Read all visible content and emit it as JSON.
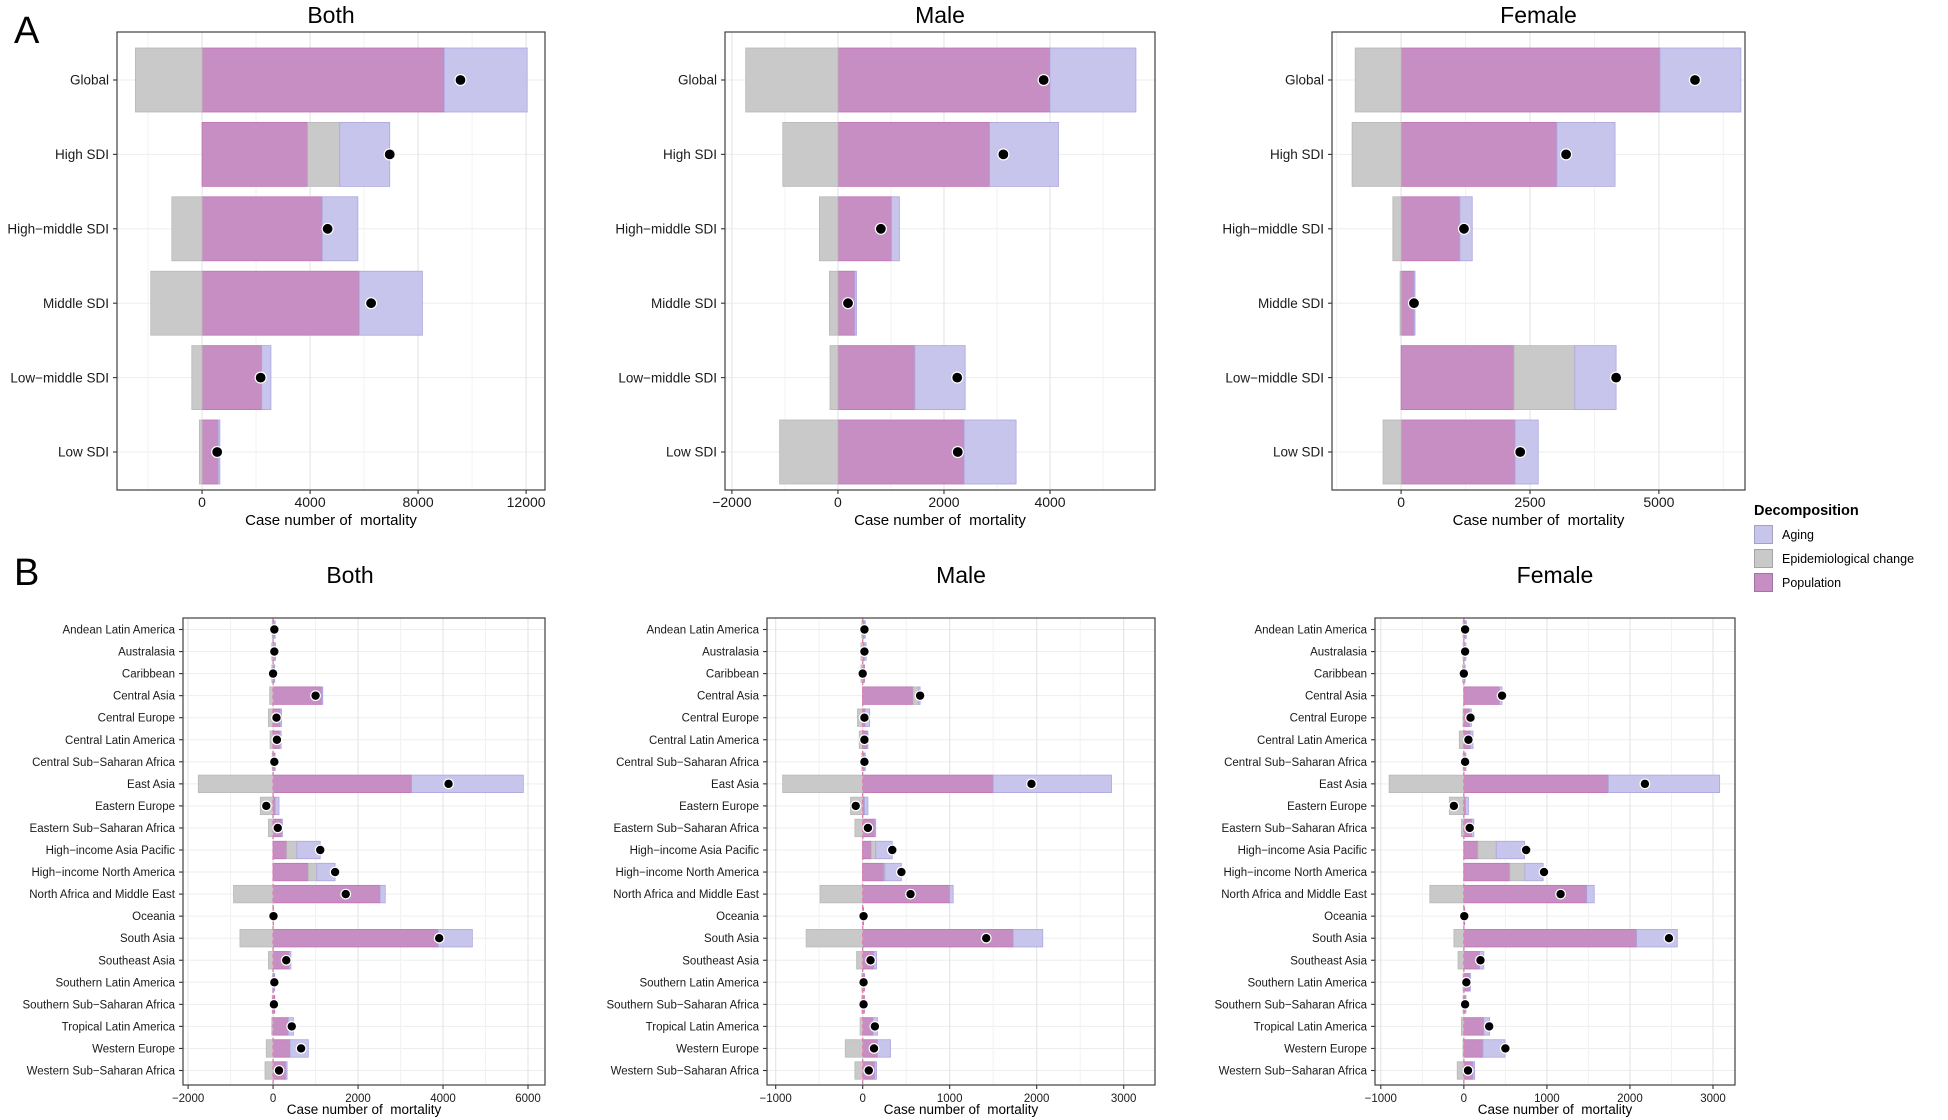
{
  "figure": {
    "panel_a_label": "A",
    "panel_b_label": "B",
    "legend": {
      "title": "Decomposition",
      "items": [
        {
          "label": "Aging",
          "color": "#c8c5ec"
        },
        {
          "label": "Epidemiological change",
          "color": "#c9c9c9"
        },
        {
          "label": "Population",
          "color": "#c78ec3"
        }
      ]
    },
    "colors": {
      "dot": "#000000",
      "zero_dashed_line": "#e082b4",
      "grid_major": "#e4e4e4",
      "grid_minor": "#f2f2f2",
      "panel_border": "#404040"
    }
  },
  "chart_data": [
    {
      "id": "a-both",
      "panel": "A",
      "title": "Both",
      "type": "bar",
      "xlabel": "Case number of  mortality",
      "xlim": [
        -3150,
        12700
      ],
      "minor_step": 2000,
      "zero_dashed": false,
      "ticks": [
        {
          "v": 0,
          "label": "0"
        },
        {
          "v": 4000,
          "label": "4000"
        },
        {
          "v": 8000,
          "label": "8000"
        },
        {
          "v": 12000,
          "label": "12000"
        }
      ],
      "categories": [
        "Global",
        "High SDI",
        "High−middle SDI",
        "Middle SDI",
        "Low−middle SDI",
        "Low SDI"
      ],
      "series": [
        {
          "name": "Population",
          "values": [
            8970,
            3910,
            4450,
            5820,
            2210,
            600
          ]
        },
        {
          "name": "Epidemiological change",
          "values": [
            -2470,
            1190,
            -1120,
            -1900,
            -380,
            -100
          ]
        },
        {
          "name": "Aging",
          "values": [
            3070,
            1850,
            1320,
            2340,
            340,
            60
          ]
        }
      ],
      "dots": [
        9570,
        6950,
        4650,
        6260,
        2170,
        560
      ]
    },
    {
      "id": "a-male",
      "panel": "A",
      "title": "Male",
      "type": "bar",
      "xlabel": "Case number of  mortality",
      "xlim": [
        -2130,
        5980
      ],
      "minor_step": 1000,
      "zero_dashed": false,
      "ticks": [
        {
          "v": -2000,
          "label": "−2000"
        },
        {
          "v": 0,
          "label": "0"
        },
        {
          "v": 2000,
          "label": "2000"
        },
        {
          "v": 4000,
          "label": "4000"
        }
      ],
      "categories": [
        "Global",
        "High SDI",
        "High−middle SDI",
        "Middle SDI",
        "Low−middle SDI",
        "Low SDI"
      ],
      "series": [
        {
          "name": "Population",
          "values": [
            4000,
            2860,
            1010,
            320,
            1450,
            2380
          ]
        },
        {
          "name": "Epidemiological change",
          "values": [
            -1740,
            -1040,
            -350,
            -160,
            -150,
            -1100
          ]
        },
        {
          "name": "Aging",
          "values": [
            1620,
            1300,
            150,
            30,
            950,
            980
          ]
        }
      ],
      "dots": [
        3880,
        3120,
        810,
        190,
        2250,
        2260
      ]
    },
    {
      "id": "a-female",
      "panel": "A",
      "title": "Female",
      "type": "bar",
      "xlabel": "Case number of  mortality",
      "xlim": [
        -1340,
        6670
      ],
      "minor_step": 1250,
      "zero_dashed": false,
      "ticks": [
        {
          "v": 0,
          "label": "0"
        },
        {
          "v": 2500,
          "label": "2500"
        },
        {
          "v": 5000,
          "label": "5000"
        }
      ],
      "categories": [
        "Global",
        "High SDI",
        "High−middle SDI",
        "Middle SDI",
        "Low−middle SDI",
        "Low SDI"
      ],
      "series": [
        {
          "name": "Population",
          "values": [
            5020,
            3020,
            1140,
            250,
            2190,
            2210
          ]
        },
        {
          "name": "Epidemiological change",
          "values": [
            -890,
            -950,
            -160,
            -20,
            1180,
            -350
          ]
        },
        {
          "name": "Aging",
          "values": [
            1570,
            1130,
            240,
            20,
            800,
            450
          ]
        }
      ],
      "dots": [
        5700,
        3200,
        1220,
        250,
        4170,
        2310
      ]
    },
    {
      "id": "b-both",
      "panel": "B",
      "title": "Both",
      "type": "bar",
      "xlabel": "Case number of  mortality",
      "xlim": [
        -2120,
        6400
      ],
      "minor_step": 1000,
      "zero_dashed": true,
      "ticks": [
        {
          "v": -2000,
          "label": "−2000"
        },
        {
          "v": 0,
          "label": "0"
        },
        {
          "v": 2000,
          "label": "2000"
        },
        {
          "v": 4000,
          "label": "4000"
        },
        {
          "v": 6000,
          "label": "6000"
        }
      ],
      "categories": [
        "Andean Latin America",
        "Australasia",
        "Caribbean",
        "Central Asia",
        "Central Europe",
        "Central Latin America",
        "Central Sub−Saharan Africa",
        "East Asia",
        "Eastern Europe",
        "Eastern Sub−Saharan Africa",
        "High−income Asia Pacific",
        "High−income North America",
        "North Africa and Middle East",
        "Oceania",
        "South Asia",
        "Southeast Asia",
        "Southern Latin America",
        "Southern Sub−Saharan Africa",
        "Tropical Latin America",
        "Western Europe",
        "Western Sub−Saharan Africa"
      ],
      "series": [
        {
          "name": "Population",
          "values": [
            30,
            30,
            30,
            1150,
            170,
            160,
            40,
            3260,
            50,
            200,
            320,
            830,
            2520,
            10,
            3890,
            380,
            30,
            40,
            360,
            400,
            300
          ]
        },
        {
          "name": "Epidemiological change",
          "values": [
            -20,
            -30,
            -30,
            -80,
            -110,
            -70,
            -20,
            -1760,
            -300,
            -110,
            240,
            200,
            -930,
            0,
            -780,
            -110,
            -10,
            -20,
            -30,
            -160,
            -190
          ]
        },
        {
          "name": "Aging",
          "values": [
            20,
            30,
            10,
            20,
            30,
            30,
            10,
            2630,
            90,
            20,
            550,
            430,
            120,
            0,
            800,
            40,
            10,
            0,
            120,
            430,
            30
          ]
        }
      ],
      "dots": [
        30,
        30,
        0,
        1000,
        80,
        90,
        30,
        4130,
        -160,
        110,
        1110,
        1460,
        1710,
        10,
        3910,
        310,
        30,
        20,
        440,
        660,
        140
      ]
    },
    {
      "id": "b-male",
      "panel": "B",
      "title": "Male",
      "type": "bar",
      "xlabel": "Case number of  mortality",
      "xlim": [
        -1100,
        3360
      ],
      "minor_step": 500,
      "zero_dashed": true,
      "ticks": [
        {
          "v": -1000,
          "label": "−1000"
        },
        {
          "v": 0,
          "label": "0"
        },
        {
          "v": 1000,
          "label": "1000"
        },
        {
          "v": 2000,
          "label": "2000"
        },
        {
          "v": 3000,
          "label": "3000"
        }
      ],
      "categories": [
        "Andean Latin America",
        "Australasia",
        "Caribbean",
        "Central Asia",
        "Central Europe",
        "Central Latin America",
        "Central Sub−Saharan Africa",
        "East Asia",
        "Eastern Europe",
        "Eastern Sub−Saharan Africa",
        "High−income Asia Pacific",
        "High−income North America",
        "North Africa and Middle East",
        "Oceania",
        "South Asia",
        "Southeast Asia",
        "Southern Latin America",
        "Southern Sub−Saharan Africa",
        "Tropical Latin America",
        "Western Europe",
        "Western Sub−Saharan Africa"
      ],
      "series": [
        {
          "name": "Population",
          "values": [
            20,
            20,
            20,
            580,
            30,
            50,
            20,
            1500,
            20,
            140,
            100,
            245,
            1000,
            10,
            1730,
            130,
            20,
            20,
            120,
            170,
            140
          ]
        },
        {
          "name": "Epidemiological change",
          "values": [
            -10,
            -20,
            -20,
            60,
            -60,
            -40,
            -10,
            -920,
            -140,
            -90,
            50,
            10,
            -490,
            0,
            -650,
            -70,
            -10,
            -10,
            -30,
            -200,
            -90
          ]
        },
        {
          "name": "Aging",
          "values": [
            10,
            20,
            0,
            20,
            50,
            10,
            10,
            1360,
            40,
            10,
            190,
            190,
            40,
            0,
            340,
            30,
            0,
            0,
            50,
            150,
            20
          ]
        }
      ],
      "dots": [
        20,
        20,
        0,
        660,
        20,
        20,
        20,
        1940,
        -80,
        60,
        340,
        445,
        550,
        10,
        1420,
        90,
        10,
        10,
        140,
        130,
        70
      ]
    },
    {
      "id": "b-female",
      "panel": "B",
      "title": "Female",
      "type": "bar",
      "xlabel": "Case number of  mortality",
      "xlim": [
        -1070,
        3265
      ],
      "minor_step": 500,
      "zero_dashed": true,
      "ticks": [
        {
          "v": -1000,
          "label": "−1000"
        },
        {
          "v": 0,
          "label": "0"
        },
        {
          "v": 1000,
          "label": "1000"
        },
        {
          "v": 2000,
          "label": "2000"
        },
        {
          "v": 3000,
          "label": "3000"
        }
      ],
      "categories": [
        "Andean Latin America",
        "Australasia",
        "Caribbean",
        "Central Asia",
        "Central Europe",
        "Central Latin America",
        "Central Sub−Saharan Africa",
        "East Asia",
        "Eastern Europe",
        "Eastern Sub−Saharan Africa",
        "High−income Asia Pacific",
        "High−income North America",
        "North Africa and Middle East",
        "Oceania",
        "South Asia",
        "Southeast Asia",
        "Southern Latin America",
        "Southern Sub−Saharan Africa",
        "Tropical Latin America",
        "Western Europe",
        "Western Sub−Saharan Africa"
      ],
      "series": [
        {
          "name": "Population",
          "values": [
            20,
            10,
            10,
            430,
            70,
            80,
            20,
            1740,
            20,
            95,
            170,
            555,
            1480,
            10,
            2080,
            190,
            70,
            20,
            240,
            230,
            110
          ]
        },
        {
          "name": "Epidemiological change",
          "values": [
            -10,
            -10,
            -15,
            0,
            -10,
            -55,
            -10,
            -900,
            -175,
            -30,
            220,
            180,
            -410,
            0,
            -120,
            -70,
            -10,
            -10,
            -30,
            -10,
            -80
          ]
        },
        {
          "name": "Aging",
          "values": [
            10,
            15,
            5,
            30,
            20,
            30,
            5,
            1340,
            35,
            25,
            340,
            220,
            90,
            0,
            490,
            50,
            10,
            5,
            70,
            265,
            20
          ]
        }
      ],
      "dots": [
        15,
        15,
        0,
        460,
        80,
        55,
        15,
        2180,
        -120,
        70,
        750,
        965,
        1165,
        5,
        2470,
        200,
        30,
        15,
        305,
        500,
        50
      ]
    }
  ]
}
